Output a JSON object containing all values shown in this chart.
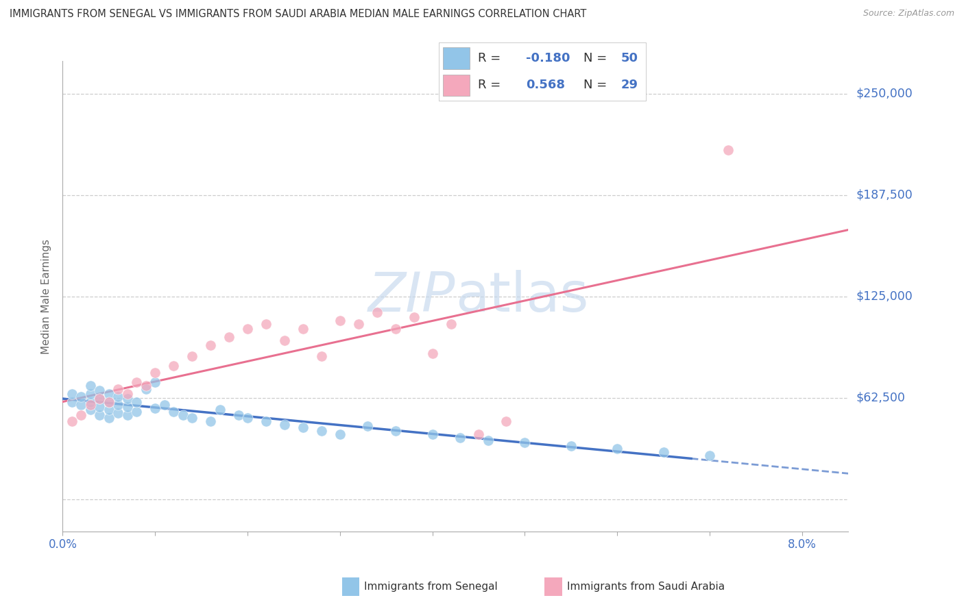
{
  "title": "IMMIGRANTS FROM SENEGAL VS IMMIGRANTS FROM SAUDI ARABIA MEDIAN MALE EARNINGS CORRELATION CHART",
  "source": "Source: ZipAtlas.com",
  "ylabel": "Median Male Earnings",
  "xlim": [
    0.0,
    0.085
  ],
  "ylim": [
    -20000,
    270000
  ],
  "yticks": [
    0,
    62500,
    125000,
    187500,
    250000
  ],
  "ytick_labels": [
    "",
    "$62,500",
    "$125,000",
    "$187,500",
    "$250,000"
  ],
  "xticks": [
    0.0,
    0.01,
    0.02,
    0.03,
    0.04,
    0.05,
    0.06,
    0.07,
    0.08
  ],
  "senegal_R": -0.18,
  "senegal_N": 50,
  "saudi_R": 0.568,
  "saudi_N": 29,
  "senegal_color": "#92C5E8",
  "saudi_color": "#F4A8BC",
  "senegal_line_color": "#4472C4",
  "saudi_line_color": "#E87090",
  "bg_color": "#FFFFFF",
  "grid_color": "#C8C8C8",
  "watermark_color": "#C5D8EE",
  "title_color": "#333333",
  "ylabel_color": "#666666",
  "tick_color": "#4472C4",
  "legend_color": "#4472C4",
  "senegal_x": [
    0.001,
    0.001,
    0.002,
    0.002,
    0.003,
    0.003,
    0.003,
    0.003,
    0.004,
    0.004,
    0.004,
    0.004,
    0.005,
    0.005,
    0.005,
    0.005,
    0.006,
    0.006,
    0.006,
    0.007,
    0.007,
    0.007,
    0.008,
    0.008,
    0.009,
    0.01,
    0.01,
    0.011,
    0.012,
    0.013,
    0.014,
    0.016,
    0.017,
    0.019,
    0.02,
    0.022,
    0.024,
    0.026,
    0.028,
    0.03,
    0.033,
    0.036,
    0.04,
    0.043,
    0.046,
    0.05,
    0.055,
    0.06,
    0.065,
    0.07
  ],
  "senegal_y": [
    60000,
    65000,
    58000,
    63000,
    55000,
    60000,
    65000,
    70000,
    52000,
    57000,
    62000,
    67000,
    50000,
    55000,
    60000,
    65000,
    53000,
    58000,
    63000,
    52000,
    57000,
    62000,
    54000,
    60000,
    68000,
    72000,
    56000,
    58000,
    54000,
    52000,
    50000,
    48000,
    55000,
    52000,
    50000,
    48000,
    46000,
    44000,
    42000,
    40000,
    45000,
    42000,
    40000,
    38000,
    36000,
    35000,
    33000,
    31000,
    29000,
    27000
  ],
  "saudi_x": [
    0.001,
    0.002,
    0.003,
    0.004,
    0.005,
    0.006,
    0.007,
    0.008,
    0.009,
    0.01,
    0.012,
    0.014,
    0.016,
    0.018,
    0.02,
    0.022,
    0.024,
    0.026,
    0.028,
    0.03,
    0.032,
    0.034,
    0.036,
    0.038,
    0.04,
    0.042,
    0.045,
    0.048,
    0.072
  ],
  "saudi_y": [
    48000,
    52000,
    58000,
    62000,
    60000,
    68000,
    65000,
    72000,
    70000,
    78000,
    82000,
    88000,
    95000,
    100000,
    105000,
    108000,
    98000,
    105000,
    88000,
    110000,
    108000,
    115000,
    105000,
    112000,
    90000,
    108000,
    40000,
    48000,
    215000
  ]
}
